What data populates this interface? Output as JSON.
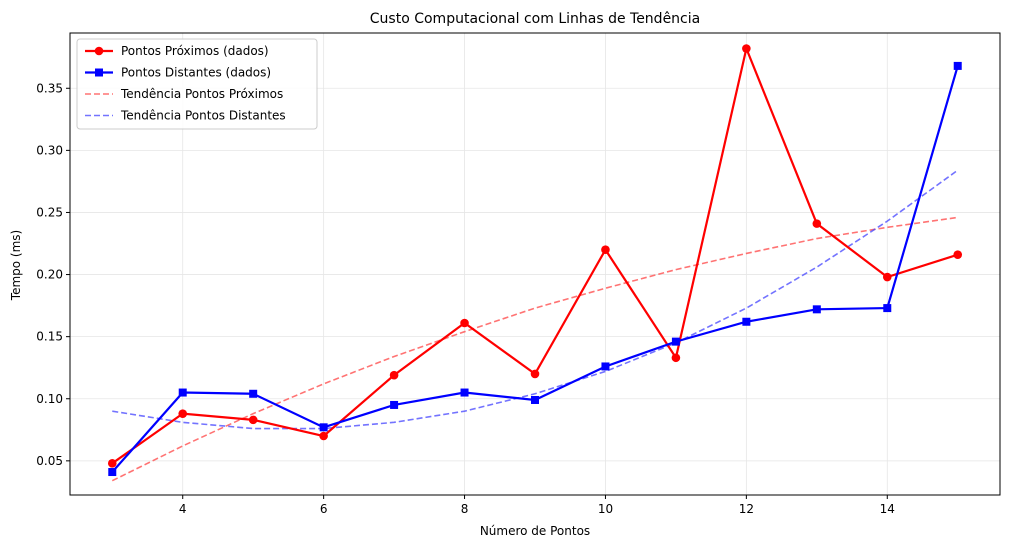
{
  "chart_data": {
    "type": "line",
    "title": "Custo Computacional com Linhas de Tendência",
    "xlabel": "Número de Pontos",
    "ylabel": "Tempo (ms)",
    "xlim": [
      2.4,
      15.6
    ],
    "ylim": [
      0.0225,
      0.3945
    ],
    "xticks": [
      4,
      6,
      8,
      10,
      12,
      14
    ],
    "yticks": [
      0.05,
      0.1,
      0.15,
      0.2,
      0.25,
      0.3,
      0.35
    ],
    "xtick_labels": [
      "4",
      "6",
      "8",
      "10",
      "12",
      "14"
    ],
    "ytick_labels": [
      "0.05",
      "0.10",
      "0.15",
      "0.20",
      "0.25",
      "0.30",
      "0.35"
    ],
    "grid": true,
    "legend_position": "top-left",
    "x": [
      3,
      4,
      5,
      6,
      7,
      8,
      9,
      10,
      11,
      12,
      13,
      14,
      15
    ],
    "series": [
      {
        "name": "Pontos Próximos (dados)",
        "style": "solid",
        "marker": "circle",
        "color": "#ff0000",
        "values": [
          0.048,
          0.088,
          0.083,
          0.07,
          0.119,
          0.161,
          0.12,
          0.22,
          0.133,
          0.382,
          0.241,
          0.198,
          0.216
        ]
      },
      {
        "name": "Pontos Distantes (dados)",
        "style": "solid",
        "marker": "square",
        "color": "#0000ff",
        "values": [
          0.041,
          0.105,
          0.104,
          0.077,
          0.095,
          0.105,
          0.099,
          0.126,
          0.146,
          0.162,
          0.172,
          0.173,
          0.368
        ]
      },
      {
        "name": "Tendência Pontos Próximos",
        "style": "dashed",
        "marker": "none",
        "color": "#ff4444",
        "values": [
          0.034,
          0.062,
          0.088,
          0.112,
          0.134,
          0.154,
          0.173,
          0.189,
          0.204,
          0.217,
          0.229,
          0.238,
          0.246
        ]
      },
      {
        "name": "Tendência Pontos Distantes",
        "style": "dashed",
        "marker": "none",
        "color": "#4444ff",
        "values": [
          0.09,
          0.081,
          0.076,
          0.076,
          0.081,
          0.09,
          0.104,
          0.122,
          0.145,
          0.173,
          0.206,
          0.243,
          0.284
        ]
      }
    ]
  }
}
